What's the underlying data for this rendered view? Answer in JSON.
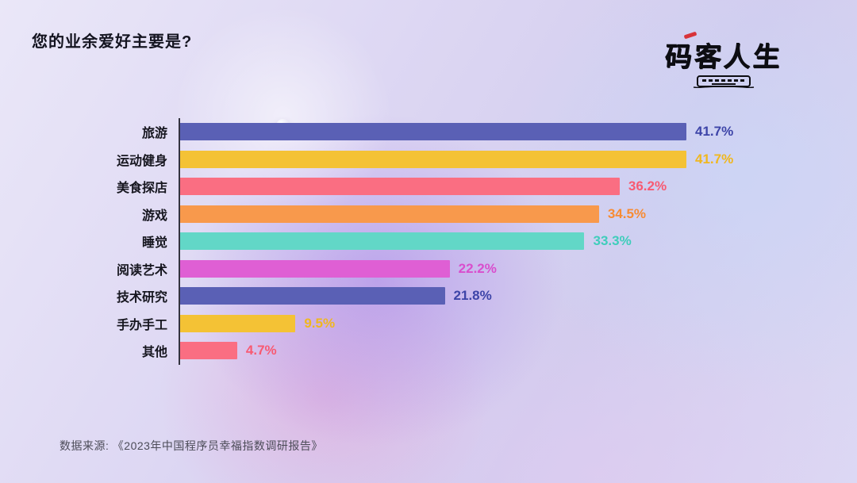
{
  "header": {
    "title": "您的业余爱好主要是?",
    "logo_text": "码客人生"
  },
  "footer": {
    "source": "数据来源: 《2023年中国程序员幸福指数调研报告》"
  },
  "chart_data": {
    "type": "bar",
    "orientation": "horizontal",
    "title": "您的业余爱好主要是?",
    "categories": [
      "旅游",
      "运动健身",
      "美食探店",
      "游戏",
      "睡觉",
      "阅读艺术",
      "技术研究",
      "手办手工",
      "其他"
    ],
    "values": [
      41.7,
      41.7,
      36.2,
      34.5,
      33.3,
      22.2,
      21.8,
      9.5,
      4.7
    ],
    "value_labels": [
      "41.7%",
      "41.7%",
      "36.2%",
      "34.5%",
      "33.3%",
      "22.2%",
      "21.8%",
      "9.5%",
      "4.7%"
    ],
    "bar_colors": [
      "#5a60b5",
      "#f4c235",
      "#fa6e82",
      "#f8994c",
      "#62d7c7",
      "#df5fd4",
      "#5a60b5",
      "#f4c235",
      "#fa6e82"
    ],
    "value_label_colors": [
      "#3d44a8",
      "#f0b71e",
      "#f85a72",
      "#f78b33",
      "#3fcdbb",
      "#d94ecd",
      "#3d44a8",
      "#f0b71e",
      "#f85a72"
    ],
    "xlim": [
      0,
      45
    ],
    "grid": false,
    "legend": false,
    "value_label_position": "end-of-bar"
  }
}
